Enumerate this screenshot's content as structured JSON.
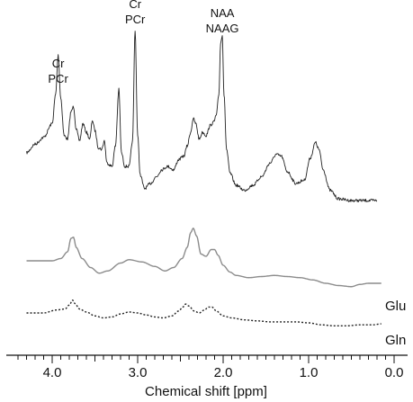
{
  "chart_data": {
    "type": "line",
    "xlabel": "Chemical shift [ppm]",
    "xlim": [
      4.4,
      0.0
    ],
    "x_ticks": [
      4.0,
      3.0,
      2.0,
      1.0,
      0.0
    ],
    "x_tick_labels": [
      "4.0",
      "3.0",
      "2.0",
      "1.0",
      "0.0"
    ],
    "x_minor_step": 0.1,
    "annotations": [
      {
        "lines": [
          "Cr",
          "PCr"
        ],
        "x": 3.93
      },
      {
        "lines": [
          "Cr",
          "PCr"
        ],
        "x": 3.03
      },
      {
        "lines": [
          "NAA",
          "NAAG"
        ],
        "x": 2.01
      }
    ],
    "series": [
      {
        "style": "solid",
        "color": "#222222",
        "noise": true,
        "points": [
          [
            4.3,
            0.28
          ],
          [
            4.2,
            0.33
          ],
          [
            4.1,
            0.37
          ],
          [
            4.0,
            0.45
          ],
          [
            3.96,
            0.62
          ],
          [
            3.93,
            0.85
          ],
          [
            3.9,
            0.6
          ],
          [
            3.86,
            0.38
          ],
          [
            3.82,
            0.36
          ],
          [
            3.78,
            0.52
          ],
          [
            3.75,
            0.55
          ],
          [
            3.72,
            0.42
          ],
          [
            3.68,
            0.35
          ],
          [
            3.64,
            0.45
          ],
          [
            3.6,
            0.4
          ],
          [
            3.56,
            0.36
          ],
          [
            3.53,
            0.47
          ],
          [
            3.5,
            0.41
          ],
          [
            3.46,
            0.31
          ],
          [
            3.42,
            0.3
          ],
          [
            3.39,
            0.35
          ],
          [
            3.36,
            0.22
          ],
          [
            3.3,
            0.2
          ],
          [
            3.26,
            0.32
          ],
          [
            3.22,
            0.65
          ],
          [
            3.19,
            0.28
          ],
          [
            3.15,
            0.2
          ],
          [
            3.1,
            0.2
          ],
          [
            3.06,
            0.35
          ],
          [
            3.03,
            1.0
          ],
          [
            3.0,
            0.38
          ],
          [
            2.97,
            0.15
          ],
          [
            2.92,
            0.07
          ],
          [
            2.85,
            0.1
          ],
          [
            2.78,
            0.14
          ],
          [
            2.72,
            0.18
          ],
          [
            2.65,
            0.2
          ],
          [
            2.58,
            0.18
          ],
          [
            2.52,
            0.24
          ],
          [
            2.46,
            0.26
          ],
          [
            2.42,
            0.32
          ],
          [
            2.38,
            0.4
          ],
          [
            2.35,
            0.48
          ],
          [
            2.32,
            0.45
          ],
          [
            2.28,
            0.36
          ],
          [
            2.24,
            0.4
          ],
          [
            2.2,
            0.38
          ],
          [
            2.15,
            0.44
          ],
          [
            2.11,
            0.46
          ],
          [
            2.08,
            0.5
          ],
          [
            2.05,
            0.62
          ],
          [
            2.03,
            0.92
          ],
          [
            2.01,
            0.97
          ],
          [
            1.99,
            0.62
          ],
          [
            1.96,
            0.3
          ],
          [
            1.92,
            0.16
          ],
          [
            1.85,
            0.09
          ],
          [
            1.75,
            0.06
          ],
          [
            1.65,
            0.09
          ],
          [
            1.55,
            0.14
          ],
          [
            1.45,
            0.22
          ],
          [
            1.38,
            0.27
          ],
          [
            1.32,
            0.26
          ],
          [
            1.25,
            0.17
          ],
          [
            1.15,
            0.1
          ],
          [
            1.05,
            0.12
          ],
          [
            0.98,
            0.25
          ],
          [
            0.92,
            0.34
          ],
          [
            0.88,
            0.3
          ],
          [
            0.83,
            0.18
          ],
          [
            0.75,
            0.06
          ],
          [
            0.65,
            0.01
          ],
          [
            0.5,
            0.0
          ],
          [
            0.35,
            0.0
          ],
          [
            0.2,
            0.0
          ]
        ]
      },
      {
        "style": "solid",
        "color": "#8c8c8c",
        "noise": false,
        "points": [
          [
            4.3,
            0.0
          ],
          [
            4.0,
            0.0
          ],
          [
            3.9,
            0.02
          ],
          [
            3.82,
            0.08
          ],
          [
            3.78,
            0.2
          ],
          [
            3.75,
            0.21
          ],
          [
            3.72,
            0.12
          ],
          [
            3.65,
            0.02
          ],
          [
            3.55,
            -0.06
          ],
          [
            3.45,
            -0.11
          ],
          [
            3.35,
            -0.09
          ],
          [
            3.2,
            -0.02
          ],
          [
            3.1,
            0.01
          ],
          [
            2.95,
            -0.01
          ],
          [
            2.8,
            -0.05
          ],
          [
            2.68,
            -0.09
          ],
          [
            2.58,
            -0.06
          ],
          [
            2.48,
            0.02
          ],
          [
            2.42,
            0.12
          ],
          [
            2.38,
            0.25
          ],
          [
            2.35,
            0.29
          ],
          [
            2.31,
            0.22
          ],
          [
            2.26,
            0.06
          ],
          [
            2.2,
            0.04
          ],
          [
            2.14,
            0.1
          ],
          [
            2.1,
            0.1
          ],
          [
            2.06,
            0.05
          ],
          [
            2.0,
            -0.04
          ],
          [
            1.92,
            -0.1
          ],
          [
            1.85,
            -0.13
          ],
          [
            1.7,
            -0.15
          ],
          [
            1.55,
            -0.14
          ],
          [
            1.4,
            -0.13
          ],
          [
            1.25,
            -0.14
          ],
          [
            1.1,
            -0.15
          ],
          [
            0.95,
            -0.17
          ],
          [
            0.8,
            -0.2
          ],
          [
            0.65,
            -0.22
          ],
          [
            0.5,
            -0.23
          ],
          [
            0.4,
            -0.21
          ],
          [
            0.3,
            -0.2
          ],
          [
            0.15,
            -0.2
          ]
        ]
      },
      {
        "style": "dotted",
        "color": "#222222",
        "noise": false,
        "points": [
          [
            4.3,
            0.0
          ],
          [
            4.1,
            0.0
          ],
          [
            3.95,
            0.03
          ],
          [
            3.85,
            0.04
          ],
          [
            3.8,
            0.08
          ],
          [
            3.76,
            0.13
          ],
          [
            3.73,
            0.09
          ],
          [
            3.68,
            0.04
          ],
          [
            3.6,
            0.01
          ],
          [
            3.5,
            -0.03
          ],
          [
            3.4,
            -0.05
          ],
          [
            3.3,
            -0.04
          ],
          [
            3.2,
            -0.01
          ],
          [
            3.1,
            0.01
          ],
          [
            3.0,
            0.0
          ],
          [
            2.9,
            -0.02
          ],
          [
            2.8,
            -0.04
          ],
          [
            2.7,
            -0.05
          ],
          [
            2.6,
            -0.03
          ],
          [
            2.52,
            0.02
          ],
          [
            2.47,
            0.06
          ],
          [
            2.44,
            0.09
          ],
          [
            2.4,
            0.07
          ],
          [
            2.34,
            0.02
          ],
          [
            2.28,
            0.0
          ],
          [
            2.22,
            0.03
          ],
          [
            2.17,
            0.06
          ],
          [
            2.13,
            0.06
          ],
          [
            2.08,
            0.02
          ],
          [
            2.0,
            -0.03
          ],
          [
            1.9,
            -0.05
          ],
          [
            1.75,
            -0.07
          ],
          [
            1.6,
            -0.08
          ],
          [
            1.45,
            -0.09
          ],
          [
            1.3,
            -0.09
          ],
          [
            1.15,
            -0.09
          ],
          [
            1.0,
            -0.1
          ],
          [
            0.85,
            -0.12
          ],
          [
            0.7,
            -0.13
          ],
          [
            0.55,
            -0.13
          ],
          [
            0.4,
            -0.12
          ],
          [
            0.25,
            -0.12
          ],
          [
            0.15,
            -0.11
          ]
        ]
      }
    ],
    "trace_labels": [
      "Glu",
      "Gln"
    ]
  }
}
